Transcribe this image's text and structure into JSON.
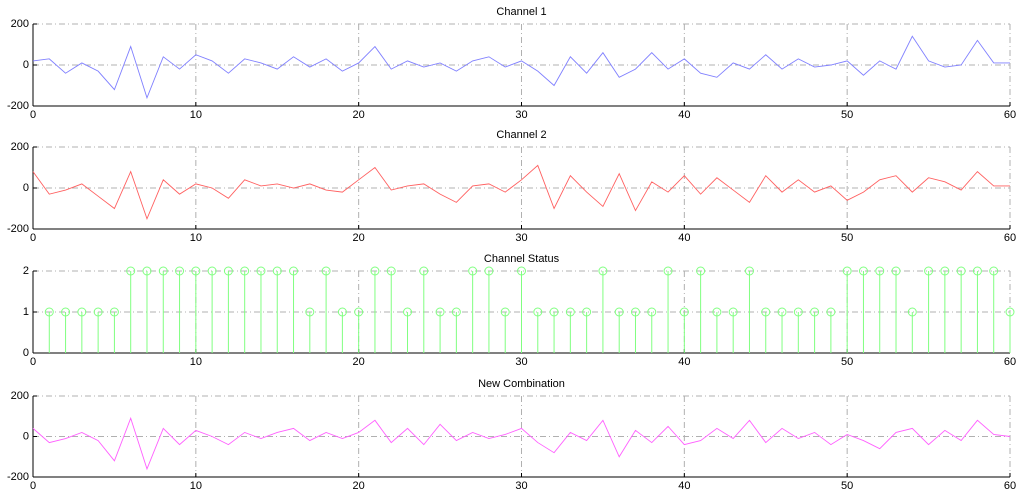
{
  "chart_data": [
    {
      "type": "line",
      "title": "Channel 1",
      "color": "#8080ff",
      "x": [
        0,
        1,
        2,
        3,
        4,
        5,
        6,
        7,
        8,
        9,
        10,
        11,
        12,
        13,
        14,
        15,
        16,
        17,
        18,
        19,
        20,
        21,
        22,
        23,
        24,
        25,
        26,
        27,
        28,
        29,
        30,
        31,
        32,
        33,
        34,
        35,
        36,
        37,
        38,
        39,
        40,
        41,
        42,
        43,
        44,
        45,
        46,
        47,
        48,
        49,
        50,
        51,
        52,
        53,
        54,
        55,
        56,
        57,
        58,
        59,
        60
      ],
      "values": [
        20,
        30,
        -40,
        10,
        -30,
        -120,
        90,
        -160,
        40,
        -20,
        50,
        20,
        -40,
        30,
        10,
        -20,
        40,
        -10,
        30,
        -30,
        10,
        90,
        -20,
        20,
        -10,
        10,
        -30,
        20,
        40,
        -10,
        20,
        -30,
        -100,
        40,
        -40,
        60,
        -60,
        -20,
        60,
        -20,
        30,
        -40,
        -60,
        10,
        -20,
        50,
        -20,
        30,
        -10,
        0,
        20,
        -50,
        20,
        -20,
        140,
        20,
        -10,
        0,
        120,
        10,
        10
      ],
      "xlim": [
        0,
        60
      ],
      "xticks": [
        0,
        10,
        20,
        30,
        40,
        50,
        60
      ],
      "ylim": [
        -200,
        200
      ],
      "yticks": [
        -200,
        0,
        200
      ],
      "grid": true
    },
    {
      "type": "line",
      "title": "Channel 2",
      "color": "#ff6060",
      "x": [
        0,
        1,
        2,
        3,
        4,
        5,
        6,
        7,
        8,
        9,
        10,
        11,
        12,
        13,
        14,
        15,
        16,
        17,
        18,
        19,
        20,
        21,
        22,
        23,
        24,
        25,
        26,
        27,
        28,
        29,
        30,
        31,
        32,
        33,
        34,
        35,
        36,
        37,
        38,
        39,
        40,
        41,
        42,
        43,
        44,
        45,
        46,
        47,
        48,
        49,
        50,
        51,
        52,
        53,
        54,
        55,
        56,
        57,
        58,
        59,
        60
      ],
      "values": [
        80,
        -30,
        -10,
        20,
        -40,
        -100,
        80,
        -150,
        40,
        -30,
        20,
        0,
        -50,
        40,
        10,
        20,
        0,
        20,
        -10,
        -20,
        40,
        100,
        -10,
        10,
        20,
        -30,
        -70,
        10,
        20,
        -20,
        40,
        110,
        -100,
        60,
        -20,
        -90,
        70,
        -110,
        30,
        -20,
        60,
        -30,
        50,
        -10,
        -70,
        60,
        -20,
        40,
        -20,
        10,
        -60,
        -20,
        40,
        60,
        -20,
        50,
        30,
        -10,
        80,
        10,
        10
      ],
      "xlim": [
        0,
        60
      ],
      "xticks": [
        0,
        10,
        20,
        30,
        40,
        50,
        60
      ],
      "ylim": [
        -200,
        200
      ],
      "yticks": [
        -200,
        0,
        200
      ],
      "grid": true
    },
    {
      "type": "stem",
      "title": "Channel Status",
      "color": "#80ff80",
      "x": [
        1,
        2,
        3,
        4,
        5,
        6,
        7,
        8,
        9,
        10,
        11,
        12,
        13,
        14,
        15,
        16,
        17,
        18,
        19,
        20,
        21,
        22,
        23,
        24,
        25,
        26,
        27,
        28,
        29,
        30,
        31,
        32,
        33,
        34,
        35,
        36,
        37,
        38,
        39,
        40,
        41,
        42,
        43,
        44,
        45,
        46,
        47,
        48,
        49,
        50,
        51,
        52,
        53,
        54,
        55,
        56,
        57,
        58,
        59,
        60
      ],
      "values": [
        1,
        1,
        1,
        1,
        1,
        2,
        2,
        2,
        2,
        2,
        2,
        2,
        2,
        2,
        2,
        2,
        1,
        2,
        1,
        1,
        2,
        2,
        1,
        2,
        1,
        1,
        2,
        2,
        1,
        2,
        1,
        1,
        1,
        1,
        2,
        1,
        1,
        1,
        2,
        1,
        2,
        1,
        1,
        2,
        1,
        1,
        1,
        1,
        1,
        2,
        2,
        2,
        2,
        1,
        2,
        2,
        2,
        2,
        2,
        1
      ],
      "xlim": [
        0,
        60
      ],
      "xticks": [
        0,
        10,
        20,
        30,
        40,
        50,
        60
      ],
      "ylim": [
        0,
        2
      ],
      "yticks": [
        0,
        1,
        2
      ],
      "grid": true
    },
    {
      "type": "line",
      "title": "New Combination",
      "color": "#ff60ff",
      "x": [
        0,
        1,
        2,
        3,
        4,
        5,
        6,
        7,
        8,
        9,
        10,
        11,
        12,
        13,
        14,
        15,
        16,
        17,
        18,
        19,
        20,
        21,
        22,
        23,
        24,
        25,
        26,
        27,
        28,
        29,
        30,
        31,
        32,
        33,
        34,
        35,
        36,
        37,
        38,
        39,
        40,
        41,
        42,
        43,
        44,
        45,
        46,
        47,
        48,
        49,
        50,
        51,
        52,
        53,
        54,
        55,
        56,
        57,
        58,
        59,
        60
      ],
      "values": [
        40,
        -30,
        -10,
        20,
        -20,
        -120,
        90,
        -160,
        40,
        -40,
        30,
        0,
        -40,
        20,
        -10,
        20,
        40,
        -20,
        20,
        -10,
        20,
        80,
        -30,
        40,
        -40,
        60,
        -20,
        20,
        -10,
        10,
        40,
        -30,
        -80,
        20,
        -20,
        80,
        -100,
        30,
        -30,
        50,
        -40,
        -20,
        40,
        -10,
        80,
        -30,
        40,
        -10,
        20,
        -40,
        10,
        -20,
        -60,
        20,
        40,
        -40,
        30,
        -20,
        80,
        10,
        0
      ],
      "xlim": [
        0,
        60
      ],
      "xticks": [
        0,
        10,
        20,
        30,
        40,
        50,
        60
      ],
      "ylim": [
        -200,
        200
      ],
      "yticks": [
        -200,
        0,
        200
      ],
      "grid": true
    }
  ]
}
